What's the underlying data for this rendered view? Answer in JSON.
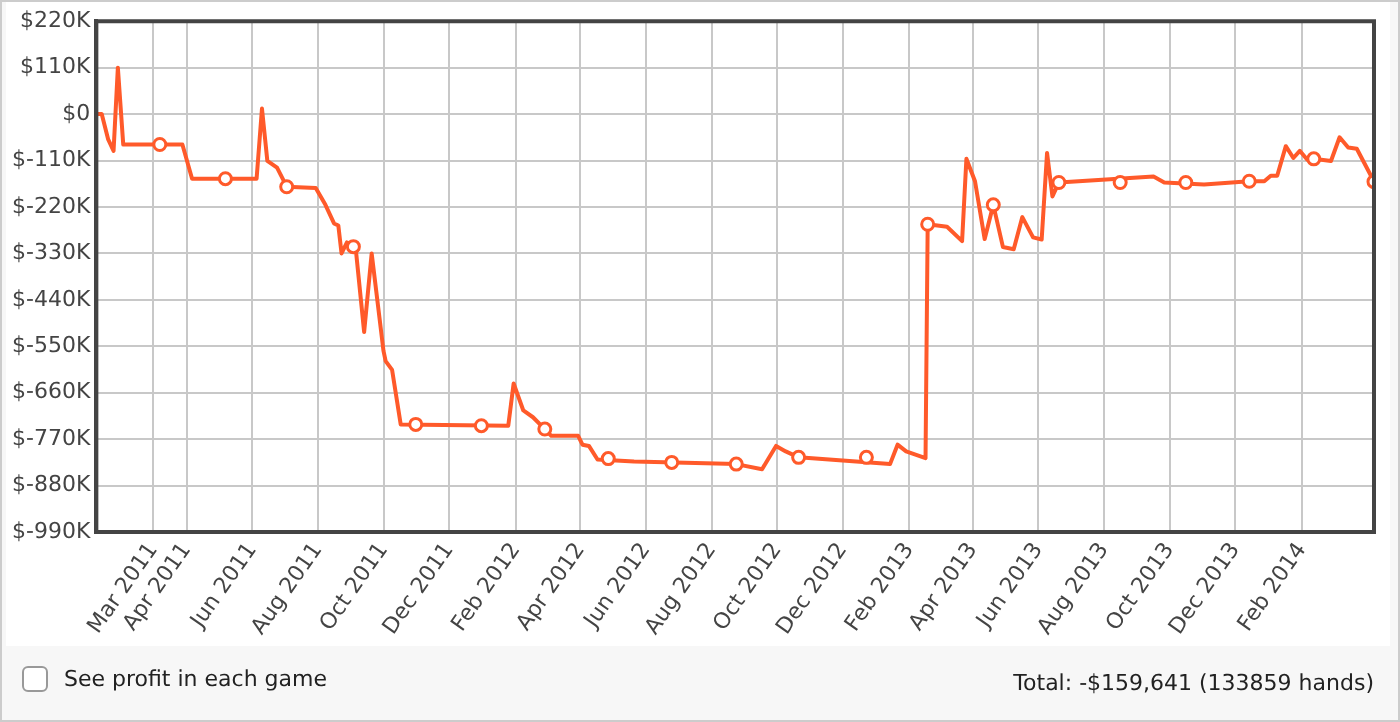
{
  "chart_data": {
    "type": "line",
    "xlim": [
      "2011-01-07",
      "2014-04-09"
    ],
    "xticks": [
      {
        "value": "2011-03-01",
        "label": "Mar 2011"
      },
      {
        "value": "2011-04-01",
        "label": "Apr 2011"
      },
      {
        "value": "2011-06-01",
        "label": "Jun 2011"
      },
      {
        "value": "2011-08-01",
        "label": "Aug 2011"
      },
      {
        "value": "2011-10-01",
        "label": "Oct 2011"
      },
      {
        "value": "2011-12-01",
        "label": "Dec 2011"
      },
      {
        "value": "2012-02-01",
        "label": "Feb 2012"
      },
      {
        "value": "2012-04-01",
        "label": "Apr 2012"
      },
      {
        "value": "2012-06-01",
        "label": "Jun 2012"
      },
      {
        "value": "2012-08-01",
        "label": "Aug 2012"
      },
      {
        "value": "2012-10-01",
        "label": "Oct 2012"
      },
      {
        "value": "2012-12-01",
        "label": "Dec 2012"
      },
      {
        "value": "2013-02-01",
        "label": "Feb 2013"
      },
      {
        "value": "2013-04-01",
        "label": "Apr 2013"
      },
      {
        "value": "2013-06-01",
        "label": "Jun 2013"
      },
      {
        "value": "2013-08-01",
        "label": "Aug 2013"
      },
      {
        "value": "2013-10-01",
        "label": "Oct 2013"
      },
      {
        "value": "2013-12-01",
        "label": "Dec 2013"
      },
      {
        "value": "2014-02-01",
        "label": "Feb 2014"
      }
    ],
    "ylim": [
      -990,
      220
    ],
    "yticks": [
      {
        "value": 220,
        "label": "$220K"
      },
      {
        "value": 110,
        "label": "$110K"
      },
      {
        "value": 0,
        "label": "$0"
      },
      {
        "value": -110,
        "label": "$-110K"
      },
      {
        "value": -220,
        "label": "$-220K"
      },
      {
        "value": -330,
        "label": "$-330K"
      },
      {
        "value": -440,
        "label": "$-440K"
      },
      {
        "value": -550,
        "label": "$-550K"
      },
      {
        "value": -660,
        "label": "$-660K"
      },
      {
        "value": -770,
        "label": "$-770K"
      },
      {
        "value": -880,
        "label": "$-880K"
      },
      {
        "value": -990,
        "label": "$-990K"
      }
    ],
    "grid": true,
    "legend": false,
    "annotations": [
      "See profit in each game",
      "Total: -$159,641 (133859 hands)"
    ],
    "series": [
      {
        "type": "line",
        "color": "#ff5a2a",
        "marker": "none",
        "line_style": "solid",
        "x": [
          "2011-01-07",
          "2011-01-12",
          "2011-01-18",
          "2011-01-23",
          "2011-01-27",
          "2011-02-01",
          "2011-03-28",
          "2011-04-06",
          "2011-06-05",
          "2011-06-10",
          "2011-06-15",
          "2011-06-24",
          "2011-07-03",
          "2011-07-30",
          "2011-08-08",
          "2011-08-16",
          "2011-08-20",
          "2011-08-23",
          "2011-08-28",
          "2011-09-05",
          "2011-09-13",
          "2011-09-20",
          "2011-10-01",
          "2011-10-03",
          "2011-10-09",
          "2011-10-17",
          "2012-01-25",
          "2012-01-30",
          "2012-02-08",
          "2012-02-17",
          "2012-02-28",
          "2012-03-05",
          "2012-03-30",
          "2012-04-03",
          "2012-04-09",
          "2012-04-17",
          "2012-05-21",
          "2012-08-24",
          "2012-09-17",
          "2012-09-30",
          "2012-10-09",
          "2012-10-21",
          "2013-01-14",
          "2013-01-21",
          "2013-01-29",
          "2013-02-16",
          "2013-02-18",
          "2013-03-08",
          "2013-03-22",
          "2013-03-26",
          "2013-04-03",
          "2013-04-12",
          "2013-04-20",
          "2013-04-29",
          "2013-05-09",
          "2013-05-17",
          "2013-05-27",
          "2013-06-04",
          "2013-06-09",
          "2013-06-14",
          "2013-06-20",
          "2013-09-16",
          "2013-09-26",
          "2013-11-02",
          "2013-12-14",
          "2013-12-28",
          "2014-01-03",
          "2014-01-09",
          "2014-01-17",
          "2014-01-24",
          "2014-01-30",
          "2014-02-06",
          "2014-02-12",
          "2014-02-28",
          "2014-03-08",
          "2014-03-16",
          "2014-03-24",
          "2014-04-09"
        ],
        "values": [
          0,
          0,
          -60,
          -87,
          110,
          -72,
          -72,
          -153,
          -153,
          13,
          -111,
          -127,
          -172,
          -175,
          -215,
          -259,
          -264,
          -330,
          -304,
          -314,
          -516,
          -330,
          -561,
          -585,
          -606,
          -735,
          -738,
          -638,
          -702,
          -718,
          -746,
          -762,
          -762,
          -783,
          -786,
          -818,
          -823,
          -829,
          -841,
          -786,
          -799,
          -813,
          -829,
          -783,
          -799,
          -815,
          -261,
          -267,
          -301,
          -106,
          -159,
          -296,
          -215,
          -315,
          -320,
          -244,
          -292,
          -297,
          -92,
          -195,
          -162,
          -148,
          -162,
          -167,
          -159,
          -159,
          -146,
          -146,
          -76,
          -104,
          -87,
          -108,
          -106,
          -111,
          -55,
          -79,
          -82,
          -160
        ]
      },
      {
        "type": "scatter",
        "color": "#ff5a2a",
        "marker": "circle",
        "x": [
          "2011-03-07",
          "2011-05-07",
          "2011-07-03",
          "2011-09-03",
          "2011-10-31",
          "2011-12-31",
          "2012-02-28",
          "2012-04-27",
          "2012-06-25",
          "2012-08-24",
          "2012-10-21",
          "2012-12-23",
          "2013-02-18",
          "2013-04-20",
          "2013-06-20",
          "2013-08-16",
          "2013-10-16",
          "2013-12-14",
          "2014-02-12",
          "2014-04-09"
        ],
        "values": [
          -72,
          -153,
          -172,
          -314,
          -735,
          -738,
          -746,
          -816,
          -825,
          -829,
          -813,
          -813,
          -261,
          -215,
          -162,
          -162,
          -162,
          -159,
          -106,
          -160
        ]
      }
    ]
  }
}
